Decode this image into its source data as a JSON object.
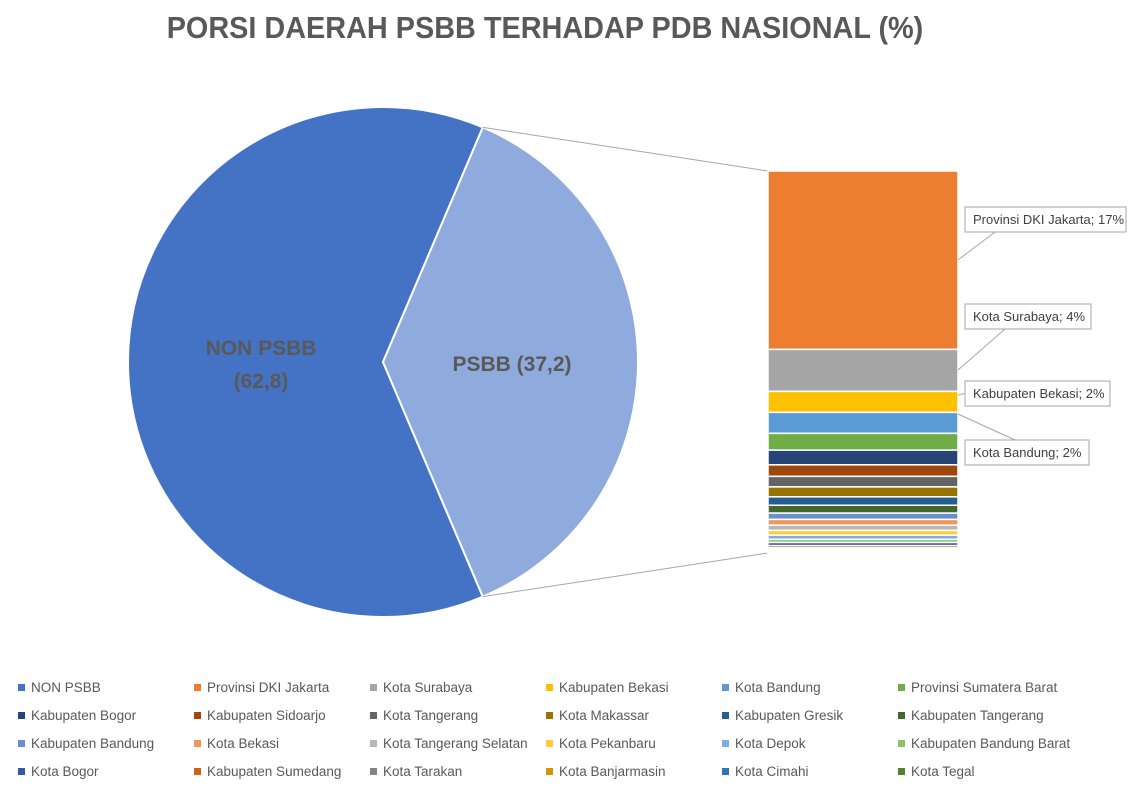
{
  "chart_data": {
    "type": "bar-of-pie",
    "title": "PORSI DAERAH PSBB TERHADAP PDB NASIONAL (%)",
    "pie": {
      "slices": [
        {
          "name": "NON PSBB",
          "label_line1": "NON PSBB",
          "label_line2": "(62,8)",
          "value": 62.8,
          "color": "#4472C4"
        },
        {
          "name": "PSBB",
          "label_line1": "PSBB (37,2)",
          "value": 37.2,
          "color": "#8FAADC"
        }
      ]
    },
    "bar": {
      "segments": [
        {
          "name": "Provinsi DKI Jakarta",
          "value": 17,
          "color": "#ED7D31"
        },
        {
          "name": "Kota Surabaya",
          "value": 4,
          "color": "#A5A5A5"
        },
        {
          "name": "Kabupaten Bekasi",
          "value": 2,
          "color": "#FFC000"
        },
        {
          "name": "Kota Bandung",
          "value": 2,
          "color": "#5B9BD5"
        },
        {
          "name": "Provinsi Sumatera Barat",
          "value": 1.6,
          "color": "#70AD47"
        },
        {
          "name": "Kabupaten Bogor",
          "value": 1.4,
          "color": "#264478"
        },
        {
          "name": "Kabupaten Sidoarjo",
          "value": 1.1,
          "color": "#9E480E"
        },
        {
          "name": "Kota Tangerang",
          "value": 1.0,
          "color": "#636363"
        },
        {
          "name": "Kota Makassar",
          "value": 0.95,
          "color": "#997300"
        },
        {
          "name": "Kabupaten Gresik",
          "value": 0.8,
          "color": "#255E91"
        },
        {
          "name": "Kabupaten Tangerang",
          "value": 0.75,
          "color": "#43682B"
        },
        {
          "name": "Kabupaten Bandung",
          "value": 0.6,
          "color": "#698ED0"
        },
        {
          "name": "Kota Bekasi",
          "value": 0.55,
          "color": "#F1975A"
        },
        {
          "name": "Kota Tangerang Selatan",
          "value": 0.5,
          "color": "#B7B7B7"
        },
        {
          "name": "Kota Pekanbaru",
          "value": 0.45,
          "color": "#FFCD33"
        },
        {
          "name": "Kota Depok",
          "value": 0.4,
          "color": "#7CAFDD"
        },
        {
          "name": "Kabupaten Bandung Barat",
          "value": 0.3,
          "color": "#8CC168"
        },
        {
          "name": "Kota Bogor",
          "value": 0.3,
          "color": "#335AA1"
        },
        {
          "name": "Kabupaten Sumedang",
          "value": 0.2,
          "color": "#D26012"
        },
        {
          "name": "Kota Tarakan",
          "value": 0.15,
          "color": "#848484"
        },
        {
          "name": "Kota Banjarmasin",
          "value": 0.15,
          "color": "#CC9A00"
        },
        {
          "name": "Kota Cimahi",
          "value": 0.1,
          "color": "#2E75B6"
        },
        {
          "name": "Kota Tegal",
          "value": 0.1,
          "color": "#548235"
        }
      ],
      "callouts": [
        {
          "text": "Provinsi DKI Jakarta; 17%",
          "segment": 0
        },
        {
          "text": "Kota Surabaya; 4%",
          "segment": 1
        },
        {
          "text": "Kabupaten Bekasi; 2%",
          "segment": 2
        },
        {
          "text": "Kota Bandung; 2%",
          "segment": 3
        }
      ]
    },
    "legend": {
      "placement": "bottom",
      "entries": [
        {
          "name": "NON PSBB",
          "color": "#4472C4"
        },
        {
          "name": "Provinsi DKI Jakarta",
          "color": "#ED7D31"
        },
        {
          "name": "Kota Surabaya",
          "color": "#A5A5A5"
        },
        {
          "name": "Kabupaten Bekasi",
          "color": "#FFC000"
        },
        {
          "name": "Kota Bandung",
          "color": "#5B9BD5"
        },
        {
          "name": "Provinsi Sumatera Barat",
          "color": "#70AD47"
        },
        {
          "name": "Kabupaten Bogor",
          "color": "#264478"
        },
        {
          "name": "Kabupaten Sidoarjo",
          "color": "#9E480E"
        },
        {
          "name": "Kota Tangerang",
          "color": "#636363"
        },
        {
          "name": "Kota Makassar",
          "color": "#997300"
        },
        {
          "name": "Kabupaten Gresik",
          "color": "#255E91"
        },
        {
          "name": "Kabupaten Tangerang",
          "color": "#43682B"
        },
        {
          "name": "Kabupaten Bandung",
          "color": "#698ED0"
        },
        {
          "name": "Kota Bekasi",
          "color": "#F1975A"
        },
        {
          "name": "Kota Tangerang Selatan",
          "color": "#B7B7B7"
        },
        {
          "name": "Kota Pekanbaru",
          "color": "#FFCD33"
        },
        {
          "name": "Kota Depok",
          "color": "#7CAFDD"
        },
        {
          "name": "Kabupaten Bandung Barat",
          "color": "#8CC168"
        },
        {
          "name": "Kota Bogor",
          "color": "#335AA1"
        },
        {
          "name": "Kabupaten Sumedang",
          "color": "#D26012"
        },
        {
          "name": "Kota Tarakan",
          "color": "#848484"
        },
        {
          "name": "Kota Banjarmasin",
          "color": "#CC9A00"
        },
        {
          "name": "Kota Cimahi",
          "color": "#2E75B6"
        },
        {
          "name": "Kota Tegal",
          "color": "#548235"
        }
      ]
    }
  }
}
